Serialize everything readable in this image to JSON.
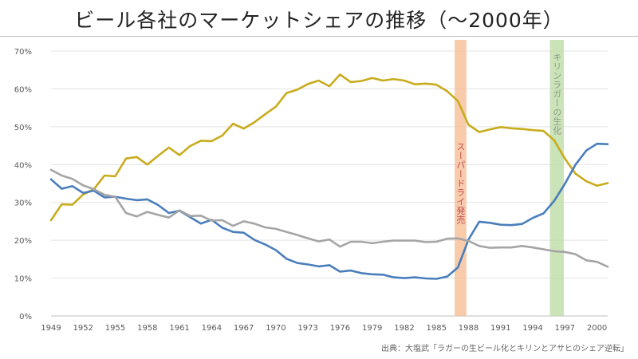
{
  "title": "ビール各社のマーケットシェアの推移（〜2000年）",
  "source": "出典：大塩武「ラガーの生ビール化とキリンとアサヒのシェア逆転」",
  "chart_data": {
    "type": "line",
    "title": "ビール各社のマーケットシェアの推移（〜2000年）",
    "xlabel": "",
    "ylabel": "",
    "xlim": [
      1949,
      2001
    ],
    "ylim": [
      0,
      70
    ],
    "y_ticks": [
      "0%",
      "10%",
      "20%",
      "30%",
      "40%",
      "50%",
      "60%",
      "70%"
    ],
    "y_tick_values": [
      0,
      10,
      20,
      30,
      40,
      50,
      60,
      70
    ],
    "x_ticks": [
      1949,
      1952,
      1955,
      1958,
      1961,
      1964,
      1967,
      1970,
      1973,
      1976,
      1979,
      1982,
      1985,
      1988,
      1991,
      1994,
      1997,
      2000
    ],
    "grid": true,
    "legend": "none",
    "x": [
      1949,
      1950,
      1951,
      1952,
      1953,
      1954,
      1955,
      1956,
      1957,
      1958,
      1959,
      1960,
      1961,
      1962,
      1963,
      1964,
      1965,
      1966,
      1967,
      1968,
      1969,
      1970,
      1971,
      1972,
      1973,
      1974,
      1975,
      1976,
      1977,
      1978,
      1979,
      1980,
      1981,
      1982,
      1983,
      1984,
      1985,
      1986,
      1987,
      1988,
      1989,
      1990,
      1991,
      1992,
      1993,
      1994,
      1995,
      1996,
      1997,
      1998,
      1999,
      2000,
      2001
    ],
    "series": [
      {
        "color": "#c8ac1e",
        "values": [
          25.3,
          29.5,
          29.4,
          32.1,
          33.5,
          37.1,
          36.9,
          41.6,
          42.0,
          40.0,
          42.3,
          44.5,
          42.5,
          44.9,
          46.3,
          46.2,
          47.7,
          50.8,
          49.5,
          51.2,
          53.3,
          55.3,
          58.9,
          59.8,
          61.3,
          62.2,
          60.7,
          63.8,
          61.8,
          62.1,
          62.9,
          62.2,
          62.6,
          62.2,
          61.2,
          61.4,
          61.1,
          59.4,
          56.8,
          50.5,
          48.6,
          49.3,
          49.9,
          49.6,
          49.4,
          49.1,
          48.9,
          46.4,
          41.6,
          37.6,
          35.6,
          34.4,
          35.1
        ]
      },
      {
        "color": "#4a7ebb",
        "values": [
          36.1,
          33.6,
          34.3,
          32.5,
          33.1,
          31.3,
          31.5,
          31.0,
          30.6,
          30.8,
          29.3,
          27.2,
          27.8,
          26.1,
          24.4,
          25.4,
          23.3,
          22.2,
          22.0,
          20.1,
          18.9,
          17.4,
          15.1,
          14.0,
          13.6,
          13.1,
          13.4,
          11.7,
          12.0,
          11.3,
          11.0,
          10.9,
          10.2,
          10.0,
          10.2,
          9.9,
          9.8,
          10.4,
          12.8,
          20.2,
          24.9,
          24.6,
          24.1,
          24.0,
          24.3,
          25.9,
          27.1,
          30.4,
          34.9,
          40.0,
          43.7,
          45.5,
          45.4
        ]
      },
      {
        "color": "#a5a5a5",
        "values": [
          38.6,
          37.1,
          36.2,
          34.5,
          33.5,
          32.0,
          31.5,
          27.2,
          26.3,
          27.5,
          26.7,
          26.0,
          27.9,
          26.4,
          26.5,
          25.2,
          25.3,
          23.8,
          25.0,
          24.4,
          23.4,
          23.0,
          22.2,
          21.4,
          20.5,
          19.7,
          20.2,
          18.3,
          19.6,
          19.6,
          19.2,
          19.6,
          19.9,
          19.9,
          19.9,
          19.5,
          19.6,
          20.4,
          20.5,
          19.8,
          18.5,
          18.0,
          18.1,
          18.1,
          18.5,
          18.1,
          17.6,
          17.1,
          16.9,
          16.3,
          14.7,
          14.3,
          13.0
        ]
      }
    ],
    "bands": [
      {
        "label": "スーパードライ発売",
        "x_start": 1986.7,
        "x_end": 1987.8,
        "color": "#f5b98f",
        "label_color": "#c0504d"
      },
      {
        "label": "キリンラガーの生化",
        "x_start": 1995.6,
        "x_end": 1996.9,
        "color": "#b9d9a0",
        "label_color": "#8a9a84"
      }
    ]
  }
}
